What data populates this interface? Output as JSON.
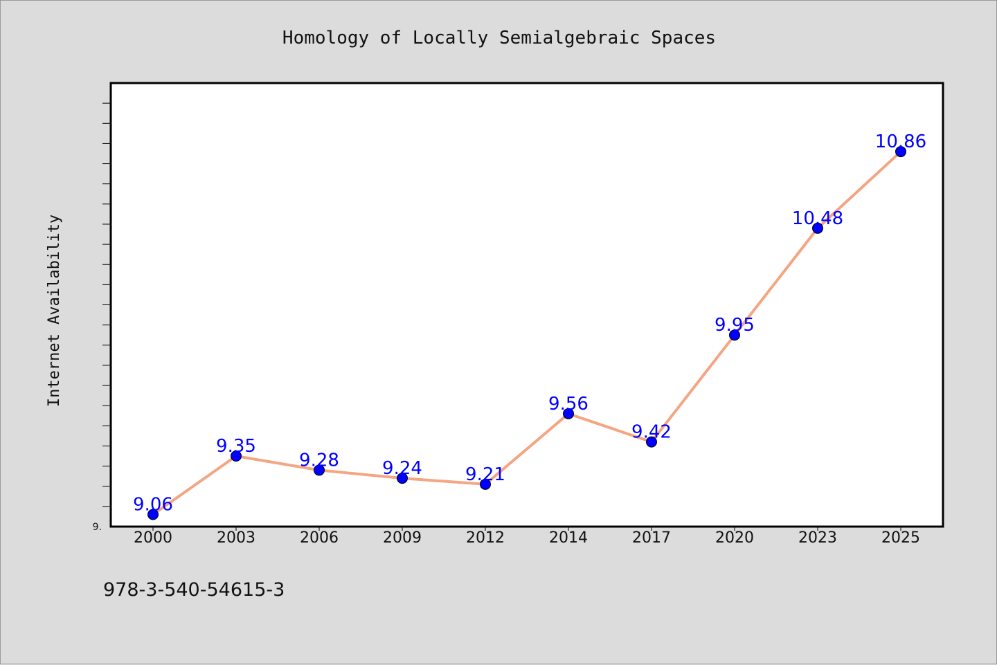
{
  "chart_data": {
    "type": "line",
    "title": "Homology of Locally Semialgebraic Spaces",
    "xlabel": "",
    "ylabel": "Internet Availability",
    "categories": [
      "2000",
      "2003",
      "2006",
      "2009",
      "2012",
      "2014",
      "2017",
      "2020",
      "2023",
      "2025"
    ],
    "series": [
      {
        "values": [
          9.06,
          9.35,
          9.28,
          9.24,
          9.21,
          9.56,
          9.42,
          9.95,
          10.48,
          10.86
        ],
        "labels": [
          "9.06",
          "9.35",
          "9.28",
          "9.24",
          "9.21",
          "9.56",
          "9.42",
          "9.95",
          "10.48",
          "10.86"
        ],
        "line_color": "#f4a582",
        "marker_color": "#0000ff",
        "label_color": "#0000ff"
      }
    ],
    "ylim": [
      9.0,
      11.2
    ],
    "y_min_tick_label": "9.",
    "grid": false,
    "legend": "none"
  },
  "footer": {
    "isbn": "978-3-540-54615-3"
  }
}
